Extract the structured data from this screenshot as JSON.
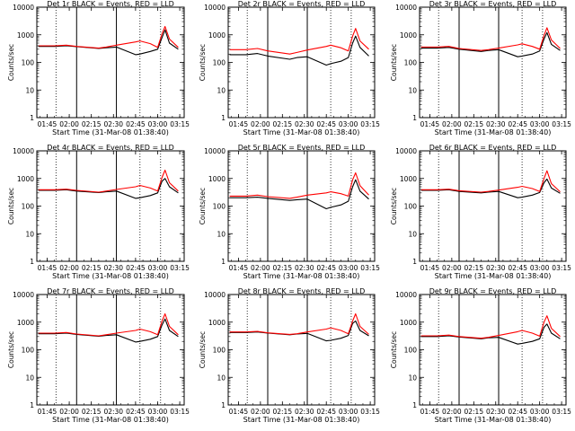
{
  "colors": {
    "background": "#ffffff",
    "events": "#000000",
    "lld": "#ff0000",
    "axes": "#000000"
  },
  "common": {
    "xlabel": "Start Time (31-Mar-08 01:38:40)",
    "ylabel": "Counts/sec",
    "title_suffix": "BLACK = Events, RED = LLD",
    "x_tick_labels": [
      "01:45",
      "02:00",
      "02:15",
      "02:30",
      "02:45",
      "03:00",
      "03:15"
    ],
    "y_tick_labels": [
      "1",
      "10",
      "100",
      "1000",
      "10000"
    ]
  },
  "chart_data": [
    {
      "type": "line",
      "title": "Det 1r BLACK = Events, RED = LLD",
      "xlim": [
        "01:38",
        "03:18"
      ],
      "ylim": [
        1,
        10000
      ],
      "yscale": "log",
      "xlabel": "Start Time (31-Mar-08 01:38:40)",
      "ylabel": "Counts/sec",
      "dotted_vlines": [
        "01:51",
        "02:48",
        "03:02"
      ],
      "solid_vlines": [
        "02:05",
        "02:32"
      ],
      "series": [
        {
          "name": "Events",
          "color": "#000000",
          "x": [
            "01:39",
            "01:50",
            "01:58",
            "02:05",
            "02:20",
            "02:25",
            "02:32",
            "02:45",
            "02:48",
            "02:55",
            "03:00",
            "03:03",
            "03:05",
            "03:08",
            "03:14"
          ],
          "y": [
            380,
            380,
            400,
            370,
            320,
            340,
            360,
            190,
            200,
            250,
            300,
            800,
            1500,
            500,
            300
          ]
        },
        {
          "name": "LLD",
          "color": "#ff0000",
          "x": [
            "01:39",
            "01:50",
            "01:58",
            "02:05",
            "02:20",
            "02:25",
            "02:32",
            "02:45",
            "02:48",
            "02:55",
            "03:00",
            "03:03",
            "03:05",
            "03:08",
            "03:14"
          ],
          "y": [
            400,
            400,
            420,
            380,
            330,
            360,
            420,
            550,
            600,
            480,
            350,
            1100,
            2000,
            700,
            350
          ]
        }
      ]
    },
    {
      "type": "line",
      "title": "Det 2r BLACK = Events, RED = LLD",
      "xlim": [
        "01:38",
        "03:18"
      ],
      "ylim": [
        1,
        10000
      ],
      "yscale": "log",
      "xlabel": "Start Time (31-Mar-08 01:38:40)",
      "ylabel": "Counts/sec",
      "dotted_vlines": [
        "01:51",
        "02:48",
        "03:02"
      ],
      "solid_vlines": [
        "02:05",
        "02:32"
      ],
      "series": [
        {
          "name": "Events",
          "color": "#000000",
          "x": [
            "01:39",
            "01:50",
            "01:58",
            "02:05",
            "02:20",
            "02:25",
            "02:32",
            "02:45",
            "02:48",
            "02:55",
            "03:00",
            "03:03",
            "03:05",
            "03:08",
            "03:14"
          ],
          "y": [
            190,
            190,
            210,
            170,
            130,
            150,
            160,
            80,
            90,
            110,
            150,
            500,
            900,
            350,
            170
          ]
        },
        {
          "name": "LLD",
          "color": "#ff0000",
          "x": [
            "01:39",
            "01:50",
            "01:58",
            "02:05",
            "02:20",
            "02:25",
            "02:32",
            "02:45",
            "02:48",
            "02:55",
            "03:00",
            "03:03",
            "03:05",
            "03:08",
            "03:14"
          ],
          "y": [
            290,
            290,
            320,
            260,
            200,
            230,
            280,
            380,
            420,
            340,
            260,
            900,
            1700,
            600,
            300
          ]
        }
      ]
    },
    {
      "type": "line",
      "title": "Det 3r BLACK = Events, RED = LLD",
      "xlim": [
        "01:38",
        "03:18"
      ],
      "ylim": [
        1,
        10000
      ],
      "yscale": "log",
      "xlabel": "Start Time (31-Mar-08 01:38:40)",
      "ylabel": "Counts/sec",
      "dotted_vlines": [
        "01:51",
        "02:48",
        "03:02"
      ],
      "solid_vlines": [
        "02:05",
        "02:32"
      ],
      "series": [
        {
          "name": "Events",
          "color": "#000000",
          "x": [
            "01:39",
            "01:50",
            "01:58",
            "02:05",
            "02:20",
            "02:25",
            "02:32",
            "02:45",
            "02:48",
            "02:55",
            "03:00",
            "03:03",
            "03:05",
            "03:08",
            "03:14"
          ],
          "y": [
            330,
            330,
            350,
            300,
            250,
            270,
            290,
            160,
            170,
            200,
            260,
            700,
            1200,
            450,
            270
          ]
        },
        {
          "name": "LLD",
          "color": "#ff0000",
          "x": [
            "01:39",
            "01:50",
            "01:58",
            "02:05",
            "02:20",
            "02:25",
            "02:32",
            "02:45",
            "02:48",
            "02:55",
            "03:00",
            "03:03",
            "03:05",
            "03:08",
            "03:14"
          ],
          "y": [
            360,
            360,
            380,
            320,
            270,
            290,
            330,
            430,
            470,
            380,
            300,
            950,
            1800,
            650,
            320
          ]
        }
      ]
    },
    {
      "type": "line",
      "title": "Det 4r BLACK = Events, RED = LLD",
      "xlim": [
        "01:38",
        "03:18"
      ],
      "ylim": [
        1,
        10000
      ],
      "yscale": "log",
      "xlabel": "Start Time (31-Mar-08 01:38:40)",
      "ylabel": "Counts/sec",
      "dotted_vlines": [
        "01:51",
        "02:48",
        "03:02"
      ],
      "solid_vlines": [
        "02:05",
        "02:32"
      ],
      "series": [
        {
          "name": "Events",
          "color": "#000000",
          "x": [
            "01:39",
            "01:50",
            "01:58",
            "02:05",
            "02:20",
            "02:25",
            "02:32",
            "02:45",
            "02:48",
            "02:55",
            "03:00",
            "03:03",
            "03:05",
            "03:08",
            "03:14"
          ],
          "y": [
            370,
            370,
            390,
            350,
            310,
            330,
            350,
            190,
            200,
            240,
            300,
            800,
            1000,
            500,
            300
          ]
        },
        {
          "name": "LLD",
          "color": "#ff0000",
          "x": [
            "01:39",
            "01:50",
            "01:58",
            "02:05",
            "02:20",
            "02:25",
            "02:32",
            "02:45",
            "02:48",
            "02:55",
            "03:00",
            "03:03",
            "03:05",
            "03:08",
            "03:14"
          ],
          "y": [
            390,
            390,
            410,
            370,
            320,
            350,
            400,
            500,
            560,
            450,
            350,
            1100,
            2000,
            700,
            350
          ]
        }
      ]
    },
    {
      "type": "line",
      "title": "Det 5r BLACK = Events, RED = LLD",
      "xlim": [
        "01:38",
        "03:18"
      ],
      "ylim": [
        1,
        10000
      ],
      "yscale": "log",
      "xlabel": "Start Time (31-Mar-08 01:38:40)",
      "ylabel": "Counts/sec",
      "dotted_vlines": [
        "01:51",
        "02:48",
        "03:02"
      ],
      "solid_vlines": [
        "02:05",
        "02:32"
      ],
      "series": [
        {
          "name": "Events",
          "color": "#000000",
          "x": [
            "01:39",
            "01:50",
            "01:58",
            "02:05",
            "02:20",
            "02:25",
            "02:32",
            "02:45",
            "02:48",
            "02:55",
            "03:00",
            "03:03",
            "03:05",
            "03:08",
            "03:14"
          ],
          "y": [
            200,
            200,
            210,
            190,
            160,
            170,
            180,
            80,
            90,
            110,
            150,
            500,
            900,
            350,
            180
          ]
        },
        {
          "name": "LLD",
          "color": "#ff0000",
          "x": [
            "01:39",
            "01:50",
            "01:58",
            "02:05",
            "02:20",
            "02:25",
            "02:32",
            "02:45",
            "02:48",
            "02:55",
            "03:00",
            "03:03",
            "03:05",
            "03:08",
            "03:14"
          ],
          "y": [
            230,
            230,
            250,
            220,
            190,
            210,
            250,
            300,
            330,
            280,
            230,
            900,
            1600,
            550,
            250
          ]
        }
      ]
    },
    {
      "type": "line",
      "title": "Det 6r BLACK = Events, RED = LLD",
      "xlim": [
        "01:38",
        "03:18"
      ],
      "ylim": [
        1,
        10000
      ],
      "yscale": "log",
      "xlabel": "Start Time (31-Mar-08 01:38:40)",
      "ylabel": "Counts/sec",
      "dotted_vlines": [
        "01:51",
        "02:48",
        "03:02"
      ],
      "solid_vlines": [
        "02:05",
        "02:32"
      ],
      "series": [
        {
          "name": "Events",
          "color": "#000000",
          "x": [
            "01:39",
            "01:50",
            "01:58",
            "02:05",
            "02:20",
            "02:25",
            "02:32",
            "02:45",
            "02:48",
            "02:55",
            "03:00",
            "03:03",
            "03:05",
            "03:08",
            "03:14"
          ],
          "y": [
            370,
            370,
            390,
            340,
            300,
            320,
            340,
            200,
            210,
            250,
            310,
            700,
            950,
            450,
            290
          ]
        },
        {
          "name": "LLD",
          "color": "#ff0000",
          "x": [
            "01:39",
            "01:50",
            "01:58",
            "02:05",
            "02:20",
            "02:25",
            "02:32",
            "02:45",
            "02:48",
            "02:55",
            "03:00",
            "03:03",
            "03:05",
            "03:08",
            "03:14"
          ],
          "y": [
            390,
            390,
            410,
            360,
            320,
            340,
            380,
            480,
            520,
            430,
            340,
            1000,
            1900,
            650,
            330
          ]
        }
      ]
    },
    {
      "type": "line",
      "title": "Det 7r BLACK = Events, RED = LLD",
      "xlim": [
        "01:38",
        "03:18"
      ],
      "ylim": [
        1,
        10000
      ],
      "yscale": "log",
      "xlabel": "Start Time (31-Mar-08 01:38:40)",
      "ylabel": "Counts/sec",
      "dotted_vlines": [
        "01:51",
        "02:48",
        "03:02"
      ],
      "solid_vlines": [
        "02:05",
        "02:32"
      ],
      "series": [
        {
          "name": "Events",
          "color": "#000000",
          "x": [
            "01:39",
            "01:50",
            "01:58",
            "02:05",
            "02:20",
            "02:25",
            "02:32",
            "02:45",
            "02:48",
            "02:55",
            "03:00",
            "03:03",
            "03:05",
            "03:08",
            "03:14"
          ],
          "y": [
            380,
            380,
            400,
            360,
            310,
            330,
            350,
            190,
            200,
            240,
            300,
            800,
            1300,
            500,
            300
          ]
        },
        {
          "name": "LLD",
          "color": "#ff0000",
          "x": [
            "01:39",
            "01:50",
            "01:58",
            "02:05",
            "02:20",
            "02:25",
            "02:32",
            "02:45",
            "02:48",
            "02:55",
            "03:00",
            "03:03",
            "03:05",
            "03:08",
            "03:14"
          ],
          "y": [
            400,
            400,
            420,
            370,
            320,
            350,
            400,
            500,
            560,
            450,
            350,
            1100,
            2000,
            700,
            350
          ]
        }
      ]
    },
    {
      "type": "line",
      "title": "Det 8r BLACK = Events, RED = LLD",
      "xlim": [
        "01:38",
        "03:18"
      ],
      "ylim": [
        1,
        10000
      ],
      "yscale": "log",
      "xlabel": "Start Time (31-Mar-08 01:38:40)",
      "ylabel": "Counts/sec",
      "dotted_vlines": [
        "01:51",
        "02:48",
        "03:02"
      ],
      "solid_vlines": [
        "02:05",
        "02:32"
      ],
      "series": [
        {
          "name": "Events",
          "color": "#000000",
          "x": [
            "01:39",
            "01:50",
            "01:58",
            "02:05",
            "02:20",
            "02:25",
            "02:32",
            "02:45",
            "02:48",
            "02:55",
            "03:00",
            "03:03",
            "03:05",
            "03:08",
            "03:14"
          ],
          "y": [
            420,
            420,
            440,
            400,
            350,
            370,
            390,
            210,
            220,
            260,
            330,
            900,
            1100,
            500,
            320
          ]
        },
        {
          "name": "LLD",
          "color": "#ff0000",
          "x": [
            "01:39",
            "01:50",
            "01:58",
            "02:05",
            "02:20",
            "02:25",
            "02:32",
            "02:45",
            "02:48",
            "02:55",
            "03:00",
            "03:03",
            "03:05",
            "03:08",
            "03:14"
          ],
          "y": [
            440,
            440,
            460,
            410,
            360,
            380,
            440,
            560,
            620,
            500,
            380,
            1100,
            2000,
            700,
            360
          ]
        }
      ]
    },
    {
      "type": "line",
      "title": "Det 9r BLACK = Events, RED = LLD",
      "xlim": [
        "01:38",
        "03:18"
      ],
      "ylim": [
        1,
        10000
      ],
      "yscale": "log",
      "xlabel": "Start Time (31-Mar-08 01:38:40)",
      "ylabel": "Counts/sec",
      "dotted_vlines": [
        "01:51",
        "02:48",
        "03:02"
      ],
      "solid_vlines": [
        "02:05",
        "02:32"
      ],
      "series": [
        {
          "name": "Events",
          "color": "#000000",
          "x": [
            "01:39",
            "01:50",
            "01:58",
            "02:05",
            "02:20",
            "02:25",
            "02:32",
            "02:45",
            "02:48",
            "02:55",
            "03:00",
            "03:03",
            "03:05",
            "03:08",
            "03:14"
          ],
          "y": [
            300,
            300,
            320,
            290,
            250,
            270,
            280,
            160,
            170,
            200,
            250,
            650,
            850,
            400,
            250
          ]
        },
        {
          "name": "LLD",
          "color": "#ff0000",
          "x": [
            "01:39",
            "01:50",
            "01:58",
            "02:05",
            "02:20",
            "02:25",
            "02:32",
            "02:45",
            "02:48",
            "02:55",
            "03:00",
            "03:03",
            "03:05",
            "03:08",
            "03:14"
          ],
          "y": [
            320,
            320,
            340,
            300,
            260,
            280,
            330,
            450,
            500,
            400,
            310,
            1000,
            1700,
            600,
            300
          ]
        }
      ]
    }
  ]
}
